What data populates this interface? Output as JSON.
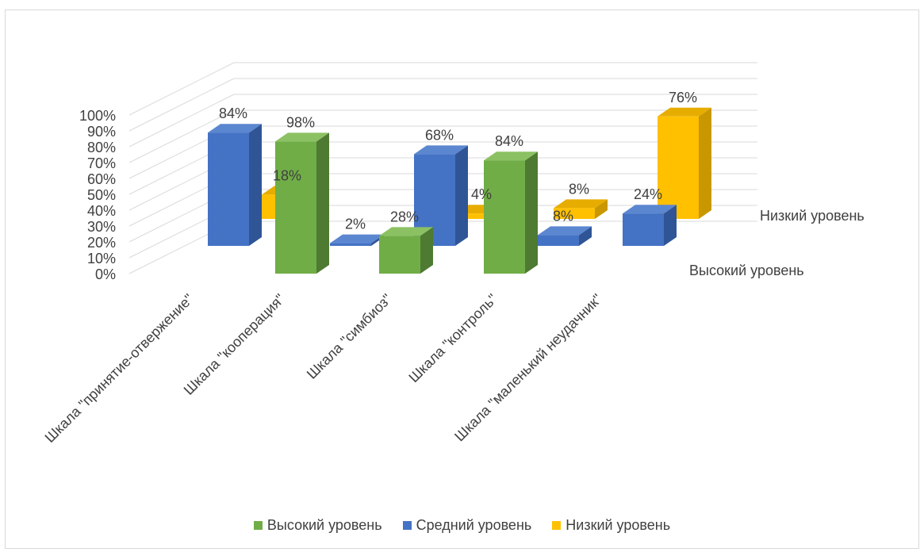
{
  "chart_data": {
    "type": "bar",
    "subtype": "3d-column",
    "categories": [
      "Шкала \"принятие-отвержение\"",
      "Шкала \"кооперация\"",
      "Шкала \"симбиоз\"",
      "Шкала \"контроль\"",
      "Шкала \"маленький неудачник\""
    ],
    "y_ticks": [
      "0%",
      "10%",
      "20%",
      "30%",
      "40%",
      "50%",
      "60%",
      "70%",
      "80%",
      "90%",
      "100%"
    ],
    "ylim": [
      0,
      100
    ],
    "series": [
      {
        "name": "Высокий уровень",
        "color": "#70ad47",
        "side": "#4e7a31",
        "top": "#8cc163",
        "values": [
          null,
          98,
          28,
          84,
          null
        ],
        "labels": [
          "",
          "98%",
          "28%",
          "84%",
          ""
        ]
      },
      {
        "name": "Средний уровень",
        "color": "#4472c4",
        "side": "#2f5597",
        "top": "#5b86d0",
        "values": [
          84,
          2,
          68,
          8,
          24
        ],
        "labels": [
          "84%",
          "2%",
          "68%",
          "8%",
          "24%"
        ]
      },
      {
        "name": "Низкий уровень",
        "color": "#ffc000",
        "side": "#c99700",
        "top": "#e6ad00",
        "values": [
          18,
          null,
          4,
          8,
          76
        ],
        "labels": [
          "18%",
          "",
          "4%",
          "8%",
          "76%"
        ]
      }
    ],
    "depth_axis_labels": [
      "Низкий уровень",
      "Высокий уровень"
    ],
    "legend": [
      "Высокий уровень",
      "Средний уровень",
      "Низкий уровень"
    ],
    "legend_position": "bottom",
    "grid": true
  }
}
